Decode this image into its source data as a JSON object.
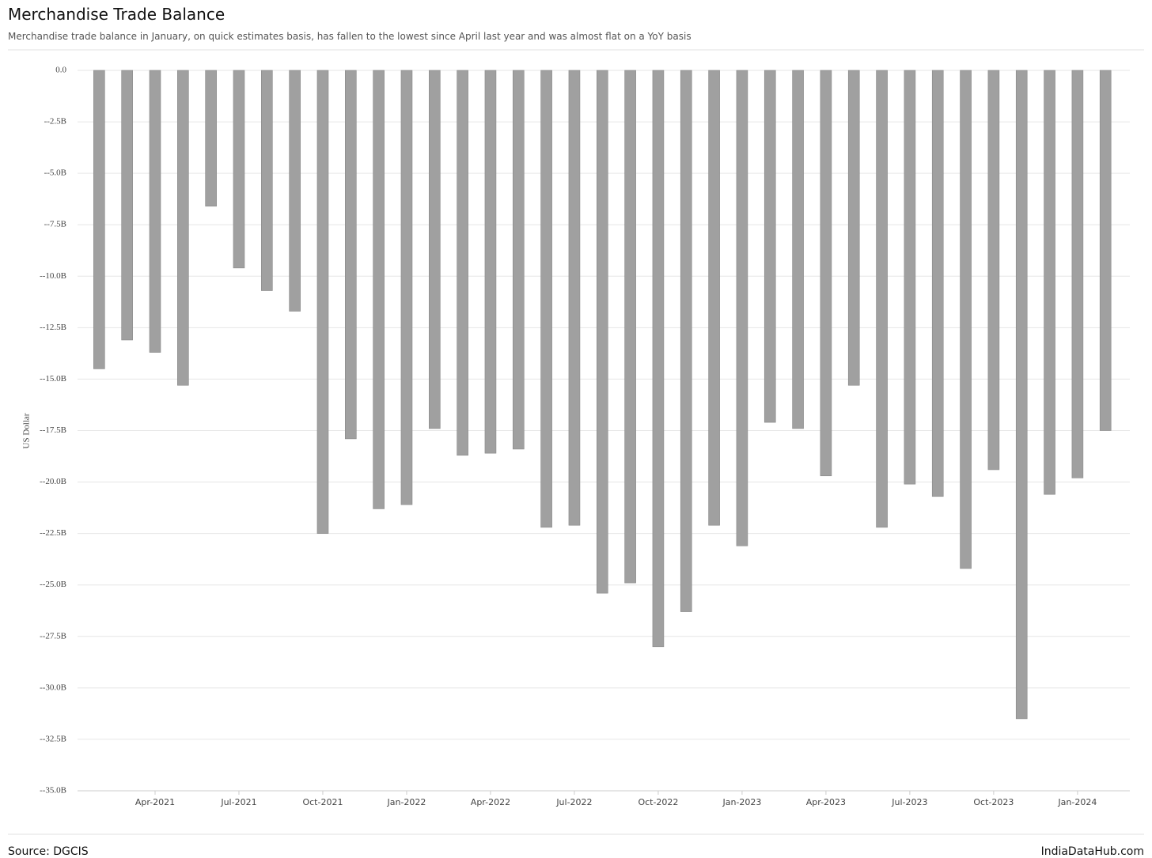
{
  "chart_data": {
    "type": "bar",
    "title": "Merchandise Trade Balance",
    "subtitle": "Merchandise trade balance in January, on quick estimates basis, has fallen to the lowest since April last year and was almost flat on a YoY basis",
    "y_label": "US Dollar",
    "source": "Source: DGCIS",
    "brand": "IndiaDataHub.com",
    "color": "#a0a0a0",
    "grid": true,
    "x": [
      "2021-01",
      "2021-02",
      "2021-03",
      "2021-04",
      "2021-05",
      "2021-06",
      "2021-07",
      "2021-08",
      "2021-09",
      "2021-10",
      "2021-11",
      "2021-12",
      "2022-01",
      "2022-02",
      "2022-03",
      "2022-04",
      "2022-05",
      "2022-06",
      "2022-07",
      "2022-08",
      "2022-09",
      "2022-10",
      "2022-11",
      "2022-12",
      "2023-01",
      "2023-02",
      "2023-03",
      "2023-04",
      "2023-05",
      "2023-06",
      "2023-07",
      "2023-08",
      "2023-09",
      "2023-10",
      "2023-11",
      "2023-12",
      "2024-01"
    ],
    "values": [
      -14.5,
      -13.1,
      -13.7,
      -15.3,
      -6.6,
      -9.6,
      -10.7,
      -11.7,
      -22.5,
      -17.9,
      -21.3,
      -21.1,
      -17.4,
      -18.7,
      -18.6,
      -18.4,
      -22.2,
      -22.1,
      -25.4,
      -24.9,
      -28.0,
      -26.3,
      -22.1,
      -23.1,
      -17.1,
      -17.4,
      -19.7,
      -15.3,
      -22.2,
      -20.1,
      -20.7,
      -24.2,
      -19.4,
      -31.5,
      -20.6,
      -19.8,
      -17.5
    ],
    "xticks": [
      {
        "value": "2021-04",
        "label": "Apr-2021"
      },
      {
        "value": "2021-07",
        "label": "Jul-2021"
      },
      {
        "value": "2021-10",
        "label": "Oct-2021"
      },
      {
        "value": "2022-01",
        "label": "Jan-2022"
      },
      {
        "value": "2022-04",
        "label": "Apr-2022"
      },
      {
        "value": "2022-07",
        "label": "Jul-2022"
      },
      {
        "value": "2022-10",
        "label": "Oct-2022"
      },
      {
        "value": "2023-01",
        "label": "Jan-2023"
      },
      {
        "value": "2023-04",
        "label": "Apr-2023"
      },
      {
        "value": "2023-07",
        "label": "Jul-2023"
      },
      {
        "value": "2023-10",
        "label": "Oct-2023"
      },
      {
        "value": "2024-01",
        "label": "Jan-2024"
      }
    ],
    "ylim": [
      -35,
      0
    ],
    "yticks": [
      {
        "value": 0,
        "label": "0.0"
      },
      {
        "value": -2.5,
        "label": "--2.5B"
      },
      {
        "value": -5,
        "label": "--5.0B"
      },
      {
        "value": -7.5,
        "label": "--7.5B"
      },
      {
        "value": -10,
        "label": "--10.0B"
      },
      {
        "value": -12.5,
        "label": "--12.5B"
      },
      {
        "value": -15,
        "label": "--15.0B"
      },
      {
        "value": -17.5,
        "label": "--17.5B"
      },
      {
        "value": -20,
        "label": "--20.0B"
      },
      {
        "value": -22.5,
        "label": "--22.5B"
      },
      {
        "value": -25,
        "label": "--25.0B"
      },
      {
        "value": -27.5,
        "label": "--27.5B"
      },
      {
        "value": -30,
        "label": "--30.0B"
      },
      {
        "value": -32.5,
        "label": "--32.5B"
      },
      {
        "value": -35,
        "label": "--35.0B"
      }
    ]
  }
}
